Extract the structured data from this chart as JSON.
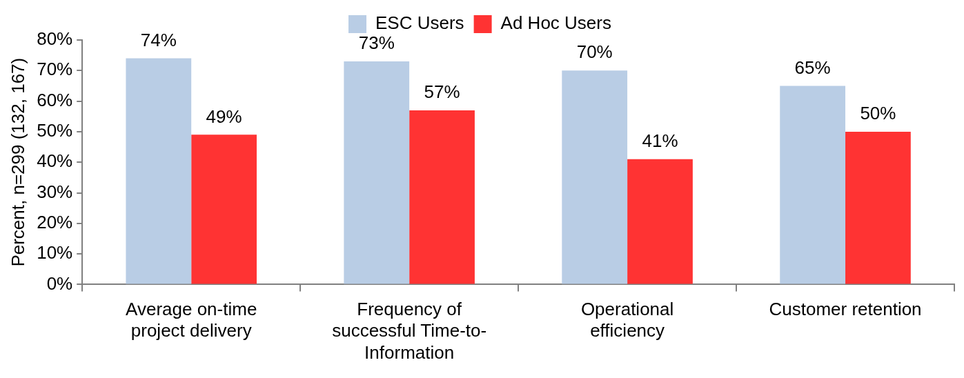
{
  "chart_data": {
    "type": "bar",
    "categories": [
      "Average on-time project delivery",
      "Frequency of successful Time-to-Information",
      "Operational efficiency",
      "Customer retention"
    ],
    "series": [
      {
        "name": "ESC Users",
        "color": "#b9cde5",
        "values": [
          74,
          73,
          70,
          65
        ],
        "value_labels": [
          "74%",
          "73%",
          "70%",
          "65%"
        ]
      },
      {
        "name": "Ad Hoc Users",
        "color": "#ff3333",
        "values": [
          49,
          57,
          41,
          50
        ],
        "value_labels": [
          "49%",
          "57%",
          "41%",
          "50%"
        ]
      }
    ],
    "ylabel": "Percent, n=299 (132, 167)",
    "ylim": [
      0,
      80
    ],
    "yticks": [
      {
        "value": 0,
        "label": "0%"
      },
      {
        "value": 10,
        "label": "10%"
      },
      {
        "value": 20,
        "label": "20%"
      },
      {
        "value": 30,
        "label": "30%"
      },
      {
        "value": 40,
        "label": "40%"
      },
      {
        "value": 50,
        "label": "50%"
      },
      {
        "value": 60,
        "label": "60%"
      },
      {
        "value": 70,
        "label": "70%"
      },
      {
        "value": 80,
        "label": "80%"
      }
    ],
    "grid": false,
    "legend": "top"
  }
}
